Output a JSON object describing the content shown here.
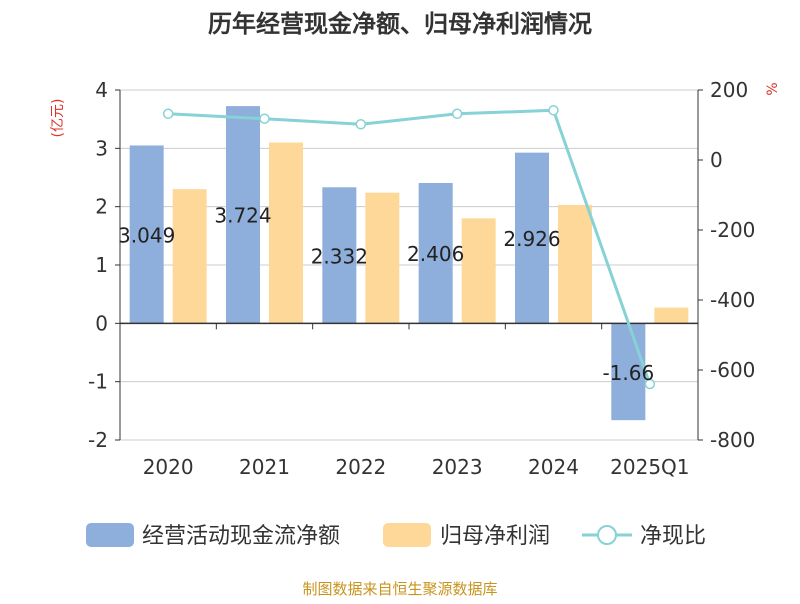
{
  "chart_data": {
    "type": "bar",
    "title": "历年经营现金净额、归母净利润情况",
    "categories": [
      "2020",
      "2021",
      "2022",
      "2023",
      "2024",
      "2025Q1"
    ],
    "y_left": {
      "unit": "(亿元)",
      "ylim": [
        -2,
        4
      ],
      "ticks": [
        "-2",
        "-1",
        "0",
        "1",
        "2",
        "3",
        "4"
      ]
    },
    "y_right": {
      "unit": "%",
      "ylim": [
        -800,
        200
      ],
      "ticks": [
        "-800",
        "-600",
        "-400",
        "-200",
        "0",
        "200"
      ]
    },
    "series": [
      {
        "name": "经营活动现金流净额",
        "type": "bar",
        "axis": "left",
        "color": "#8eaedb",
        "values": [
          3.049,
          3.724,
          2.332,
          2.406,
          2.926,
          -1.66
        ],
        "labels": [
          "3.049",
          "3.724",
          "2.332",
          "2.406",
          "2.926",
          "-1.66"
        ]
      },
      {
        "name": "归母净利润",
        "type": "bar",
        "axis": "left",
        "color": "#fdd898",
        "values": [
          2.3,
          3.1,
          2.24,
          1.8,
          2.03,
          0.27
        ]
      },
      {
        "name": "净现比",
        "type": "line",
        "axis": "right",
        "color": "#86d2d6",
        "values": [
          132,
          118,
          102,
          132,
          142,
          -640
        ]
      }
    ],
    "grid": true,
    "legend": "bottom"
  },
  "footer": {
    "source": "制图数据来自恒生聚源数据库"
  }
}
